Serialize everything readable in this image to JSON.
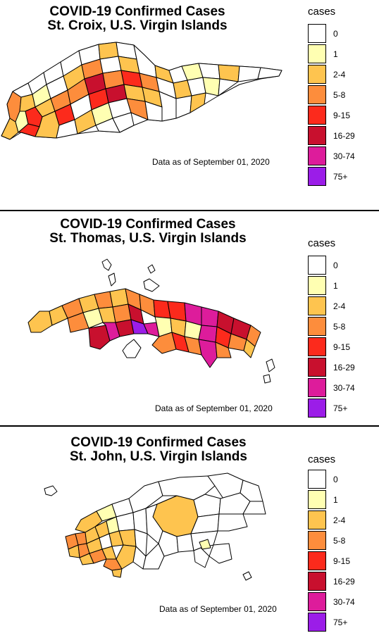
{
  "panels": [
    {
      "title_line1": "COVID-19 Confirmed Cases",
      "title_line2": "St. Croix, U.S. Virgin Islands",
      "data_note": "Data as of September 01, 2020",
      "legend_title": "cases"
    },
    {
      "title_line1": "COVID-19 Confirmed Cases",
      "title_line2": "St. Thomas, U.S. Virgin Islands",
      "data_note": "Data as of September 01, 2020",
      "legend_title": "cases"
    },
    {
      "title_line1": "COVID-19 Confirmed Cases",
      "title_line2": "St. John, U.S. Virgin Islands",
      "data_note": "Data as of September 01, 2020",
      "legend_title": "cases"
    }
  ],
  "legend": [
    {
      "label": "0",
      "color": "#ffffff"
    },
    {
      "label": "1",
      "color": "#ffffb2"
    },
    {
      "label": "2-4",
      "color": "#fec44f"
    },
    {
      "label": "5-8",
      "color": "#fd8d3c"
    },
    {
      "label": "9-15",
      "color": "#fc2a1c"
    },
    {
      "label": "16-29",
      "color": "#c8102e"
    },
    {
      "label": "30-74",
      "color": "#dd1c9b"
    },
    {
      "label": "75+",
      "color": "#9b1de8"
    }
  ]
}
